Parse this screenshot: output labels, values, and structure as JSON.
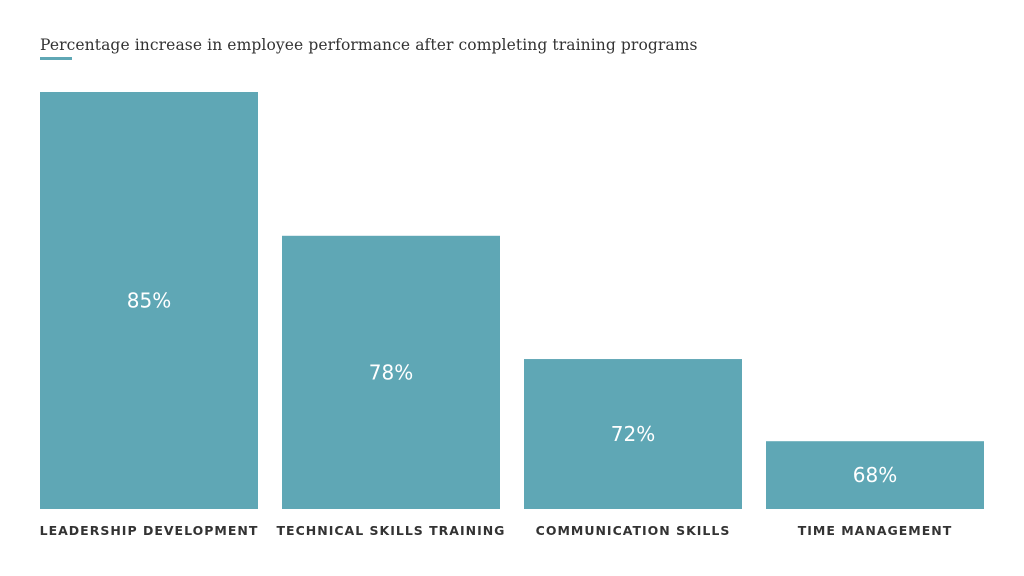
{
  "chart_data": {
    "type": "bar",
    "title": "Percentage increase in employee performance after completing training programs",
    "categories": [
      "LEADERSHIP DEVELOPMENT",
      "TECHNICAL SKILLS TRAINING",
      "COMMUNICATION SKILLS",
      "TIME MANAGEMENT"
    ],
    "values": [
      85,
      78,
      72,
      68
    ],
    "value_labels": [
      "85%",
      "78%",
      "72%",
      "68%"
    ],
    "xlabel": "",
    "ylabel": "",
    "ylim": [
      64.7,
      85
    ],
    "grid": false,
    "bar_color": "#5fa7b5",
    "accent_color": "#5fa7b5"
  }
}
